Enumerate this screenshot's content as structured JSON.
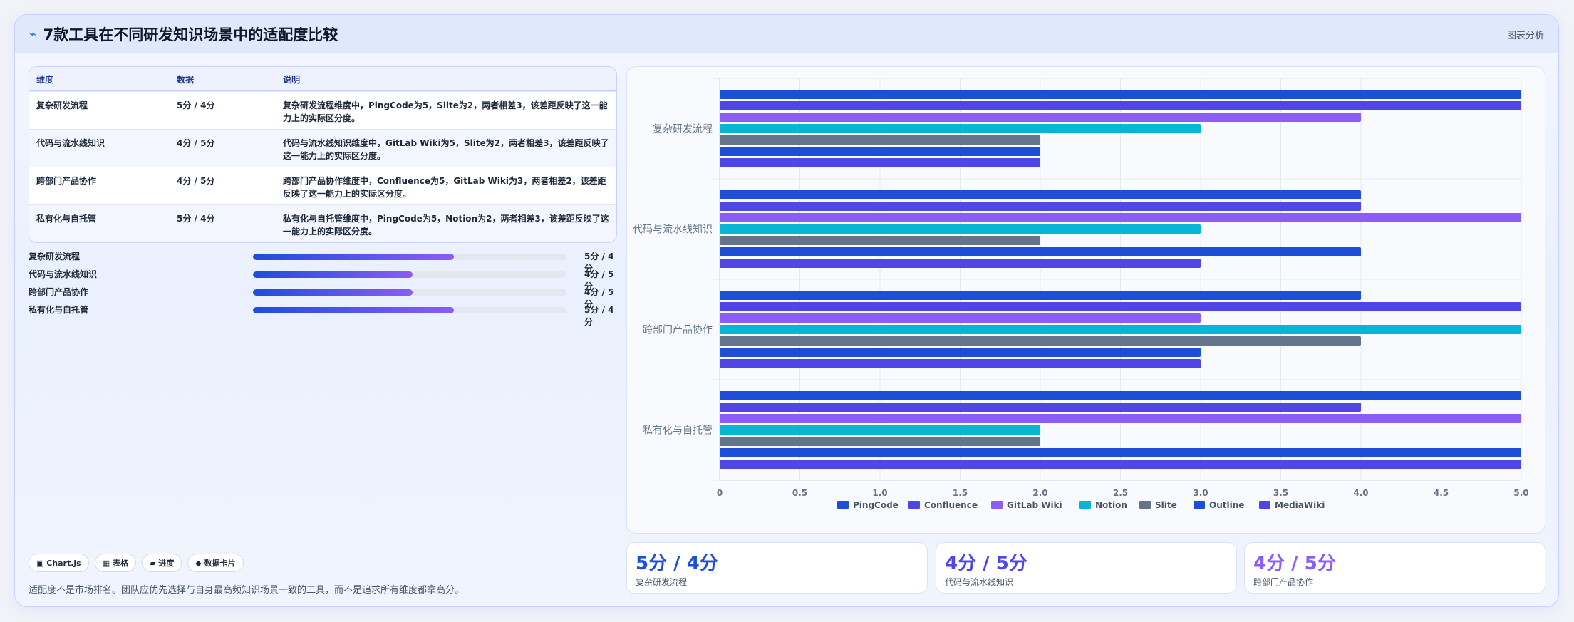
{
  "header": {
    "icon": "⌁",
    "title": "7款工具在不同研发知识场景中的适配度比较",
    "right_label": "图表分析"
  },
  "table": {
    "headers": [
      "维度",
      "数据",
      "说明"
    ],
    "rows": [
      {
        "dim": "复杂研发流程",
        "data": "5分 / 4分",
        "desc": "复杂研发流程维度中，PingCode为5，Slite为2，两者相差3，该差距反映了这一能力上的实际区分度。"
      },
      {
        "dim": "代码与流水线知识",
        "data": "4分 / 5分",
        "desc": "代码与流水线知识维度中，GitLab Wiki为5，Slite为2，两者相差3，该差距反映了这一能力上的实际区分度。"
      },
      {
        "dim": "跨部门产品协作",
        "data": "4分 / 5分",
        "desc": "跨部门产品协作维度中，Confluence为5，GitLab Wiki为3，两者相差2，该差距反映了这一能力上的实际区分度。"
      },
      {
        "dim": "私有化与自托管",
        "data": "5分 / 4分",
        "desc": "私有化与自托管维度中，PingCode为5，Notion为2，两者相差3，该差距反映了这一能力上的实际区分度。"
      }
    ]
  },
  "progress": [
    {
      "label": "复杂研发流程",
      "value_text": "5分 / 4分",
      "fraction": 0.64
    },
    {
      "label": "代码与流水线知识",
      "value_text": "4分 / 5分",
      "fraction": 0.51
    },
    {
      "label": "跨部门产品协作",
      "value_text": "4分 / 5分",
      "fraction": 0.51
    },
    {
      "label": "私有化与自托管",
      "value_text": "5分 / 4分",
      "fraction": 0.64
    }
  ],
  "tags": [
    "▣ Chart.js",
    "▦ 表格",
    "▰ 进度",
    "◆ 数据卡片"
  ],
  "footer_note": "适配度不是市场排名。团队应优先选择与自身最高频知识场景一致的工具，而不是追求所有维度都拿高分。",
  "stats": [
    {
      "value": "5分 / 4分",
      "label": "复杂研发流程",
      "color": "#1d4ed8"
    },
    {
      "value": "4分 / 5分",
      "label": "代码与流水线知识",
      "color": "#4f46e5"
    },
    {
      "value": "4分 / 5分",
      "label": "跨部门产品协作",
      "color": "#8b5cf6"
    }
  ],
  "chart_data": {
    "type": "bar",
    "orientation": "horizontal",
    "categories": [
      "复杂研发流程",
      "代码与流水线知识",
      "跨部门产品协作",
      "私有化与自托管"
    ],
    "series": [
      {
        "name": "PingCode",
        "color": "#1d4ed8",
        "values": [
          5,
          4,
          4,
          5
        ]
      },
      {
        "name": "Confluence",
        "color": "#4f46e5",
        "values": [
          5,
          4,
          5,
          4
        ]
      },
      {
        "name": "GitLab Wiki",
        "color": "#8b5cf6",
        "values": [
          4,
          5,
          3,
          5
        ]
      },
      {
        "name": "Notion",
        "color": "#06b6d4",
        "values": [
          3,
          3,
          5,
          2
        ]
      },
      {
        "name": "Slite",
        "color": "#64748b",
        "values": [
          2,
          2,
          4,
          2
        ]
      },
      {
        "name": "Outline",
        "color": "#1d4ed8",
        "values": [
          2,
          4,
          3,
          5
        ]
      },
      {
        "name": "MediaWiki",
        "color": "#4f46e5",
        "values": [
          2,
          3,
          3,
          5
        ]
      }
    ],
    "xlim": [
      0,
      5
    ],
    "xticks": [
      "0",
      "0.5",
      "1.0",
      "1.5",
      "2.0",
      "2.5",
      "3.0",
      "3.5",
      "4.0",
      "4.5",
      "5.0"
    ],
    "grid": true,
    "legend_position": "bottom"
  }
}
